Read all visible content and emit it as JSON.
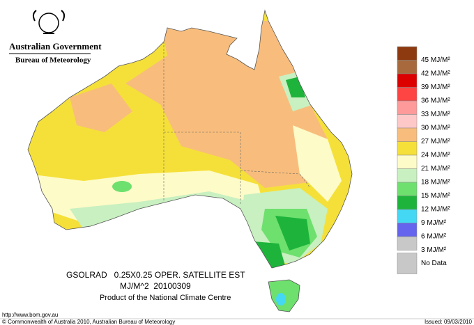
{
  "header": {
    "title": "Australian Government",
    "subtitle": "Bureau of Meteorology"
  },
  "legend": [
    {
      "label": "45 MJ/M²",
      "color": "#8e3a10"
    },
    {
      "label": "42 MJ/M²",
      "color": "#a86a3c"
    },
    {
      "label": "39 MJ/M²",
      "color": "#dc0000"
    },
    {
      "label": "36 MJ/M²",
      "color": "#ff4444"
    },
    {
      "label": "33 MJ/M²",
      "color": "#ff9a9a"
    },
    {
      "label": "30 MJ/M²",
      "color": "#ffc8c8"
    },
    {
      "label": "27 MJ/M²",
      "color": "#f8bd7c"
    },
    {
      "label": "24 MJ/M²",
      "color": "#f5e03a"
    },
    {
      "label": "21 MJ/M²",
      "color": "#fdfbc8"
    },
    {
      "label": "18 MJ/M²",
      "color": "#c8f0c0"
    },
    {
      "label": "15 MJ/M²",
      "color": "#6ee06e"
    },
    {
      "label": "12 MJ/M²",
      "color": "#1eb43c"
    },
    {
      "label": "9 MJ/M²",
      "color": "#44d8f4"
    },
    {
      "label": "6 MJ/M²",
      "color": "#6464ee"
    },
    {
      "label": "3 MJ/M²",
      "color": "#c8c8c8"
    },
    {
      "label": "No Data",
      "color": "#c8c8c8"
    }
  ],
  "caption": {
    "line1": "GSOLRAD   0.25X0.25 OPER. SATELLITE EST",
    "line2": "MJ/M^2  20100309",
    "line3": "Product of the National Climate Centre"
  },
  "url": "http://www.bom.gov.au",
  "footer": {
    "copyright": "© Commonwealth of Australia 2010, Australian Bureau of Meteorology",
    "issued": "Issued: 09/03/2010"
  }
}
